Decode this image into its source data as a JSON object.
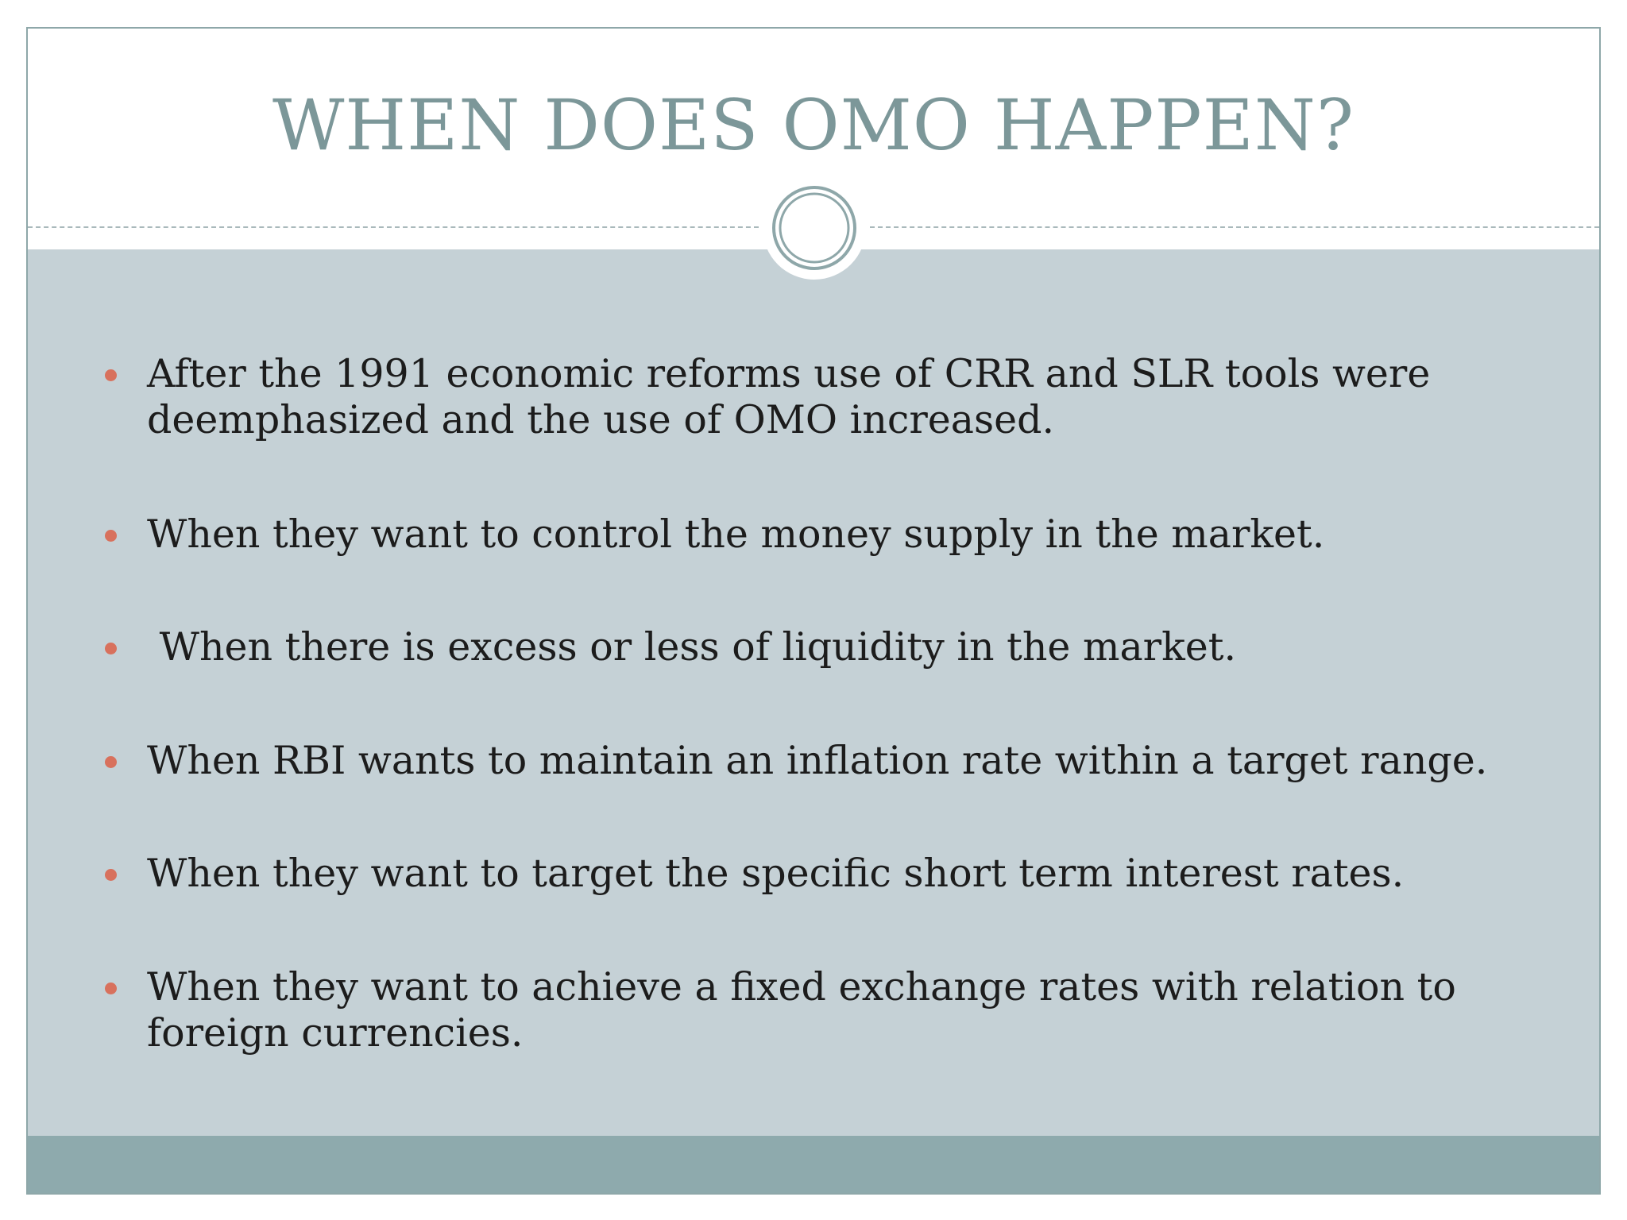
{
  "slide": {
    "title": "WHEN DOES OMO HAPPEN?",
    "bullets": [
      "After the 1991 economic reforms use of CRR and SLR tools were deemphasized and the use of OMO increased.",
      "When they want to control the money supply in the market.",
      " When there is excess or less of liquidity in the market.",
      "When RBI wants to maintain an inflation rate within a target range.",
      "When they want to target the specific short term interest rates.",
      "When they want to achieve a fixed exchange rates with relation to foreign currencies."
    ]
  },
  "colors": {
    "title": "#7c9799",
    "content_background": "#c5d1d6",
    "footer_band": "#8eaaad",
    "bullet_dot": "#d8715d",
    "text": "#1c1c1c"
  }
}
